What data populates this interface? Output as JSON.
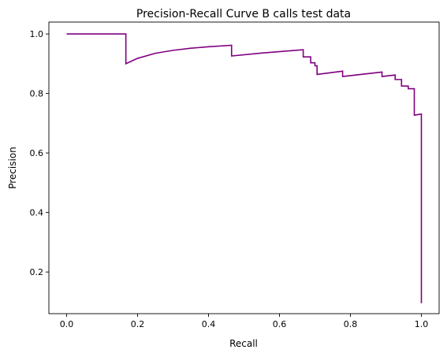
{
  "chart_data": {
    "type": "line",
    "title": "Precision-Recall Curve B calls test data",
    "xlabel": "Recall",
    "ylabel": "Precision",
    "xlim": [
      -0.05,
      1.05
    ],
    "ylim": [
      0.06,
      1.04
    ],
    "xticks": [
      0.0,
      0.2,
      0.4,
      0.6,
      0.8,
      1.0
    ],
    "xtick_labels": [
      "0.0",
      "0.2",
      "0.4",
      "0.6",
      "0.8",
      "1.0"
    ],
    "yticks": [
      0.2,
      0.4,
      0.6,
      0.8,
      1.0
    ],
    "ytick_labels": [
      "0.2",
      "0.4",
      "0.6",
      "0.8",
      "1.0"
    ],
    "grid": false,
    "series": [
      {
        "color": "#800080",
        "x": [
          0.0,
          0.167,
          0.167,
          0.2,
          0.25,
          0.3,
          0.35,
          0.4,
          0.465,
          0.465,
          0.55,
          0.667,
          0.667,
          0.688,
          0.688,
          0.7,
          0.7,
          0.706,
          0.706,
          0.778,
          0.778,
          0.889,
          0.889,
          0.926,
          0.926,
          0.944,
          0.944,
          0.963,
          0.963,
          0.98,
          0.98,
          1.0,
          1.0
        ],
        "y": [
          1.0,
          1.0,
          0.9,
          0.918,
          0.935,
          0.945,
          0.952,
          0.957,
          0.962,
          0.926,
          0.936,
          0.947,
          0.923,
          0.923,
          0.903,
          0.903,
          0.893,
          0.893,
          0.864,
          0.875,
          0.857,
          0.872,
          0.857,
          0.862,
          0.847,
          0.847,
          0.825,
          0.825,
          0.816,
          0.816,
          0.727,
          0.731,
          0.095
        ]
      }
    ]
  }
}
